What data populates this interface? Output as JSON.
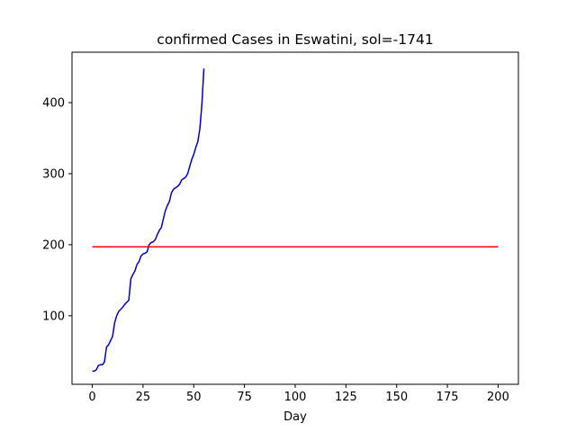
{
  "chart_data": {
    "type": "line",
    "title": "confirmed Cases in Eswatini, sol=-1741",
    "xlabel": "Day",
    "ylabel": "",
    "xlim": [
      -10,
      210
    ],
    "ylim": [
      3.5,
      471
    ],
    "x_ticks": [
      0,
      25,
      50,
      75,
      100,
      125,
      150,
      175,
      200
    ],
    "y_ticks": [
      100,
      200,
      300,
      400
    ],
    "grid": false,
    "legend": "none",
    "series": [
      {
        "color": "#0000cd",
        "x": [
          0,
          1,
          2,
          3,
          4,
          5,
          6,
          7,
          8,
          9,
          10,
          11,
          12,
          13,
          14,
          15,
          16,
          17,
          18,
          19,
          20,
          21,
          22,
          23,
          24,
          25,
          26,
          27,
          28,
          29,
          30,
          31,
          32,
          33,
          34,
          35,
          36,
          37,
          38,
          39,
          40,
          41,
          42,
          43,
          44,
          45,
          46,
          47,
          48,
          49,
          50,
          51,
          52,
          53,
          54,
          55
        ],
        "y": [
          22,
          22,
          24,
          30,
          31,
          31,
          35,
          56,
          59,
          65,
          71,
          90,
          100,
          106,
          109,
          112,
          116,
          119,
          122,
          152,
          158,
          163,
          172,
          176,
          184,
          187,
          188,
          190,
          200,
          203,
          204,
          207,
          214,
          220,
          224,
          236,
          248,
          255,
          261,
          273,
          278,
          280,
          282,
          285,
          291,
          293,
          295,
          300,
          310,
          320,
          327,
          337,
          345,
          363,
          397,
          448
        ]
      },
      {
        "color": "#ff0000",
        "x": [
          0,
          200
        ],
        "y": [
          197,
          197
        ]
      }
    ]
  }
}
